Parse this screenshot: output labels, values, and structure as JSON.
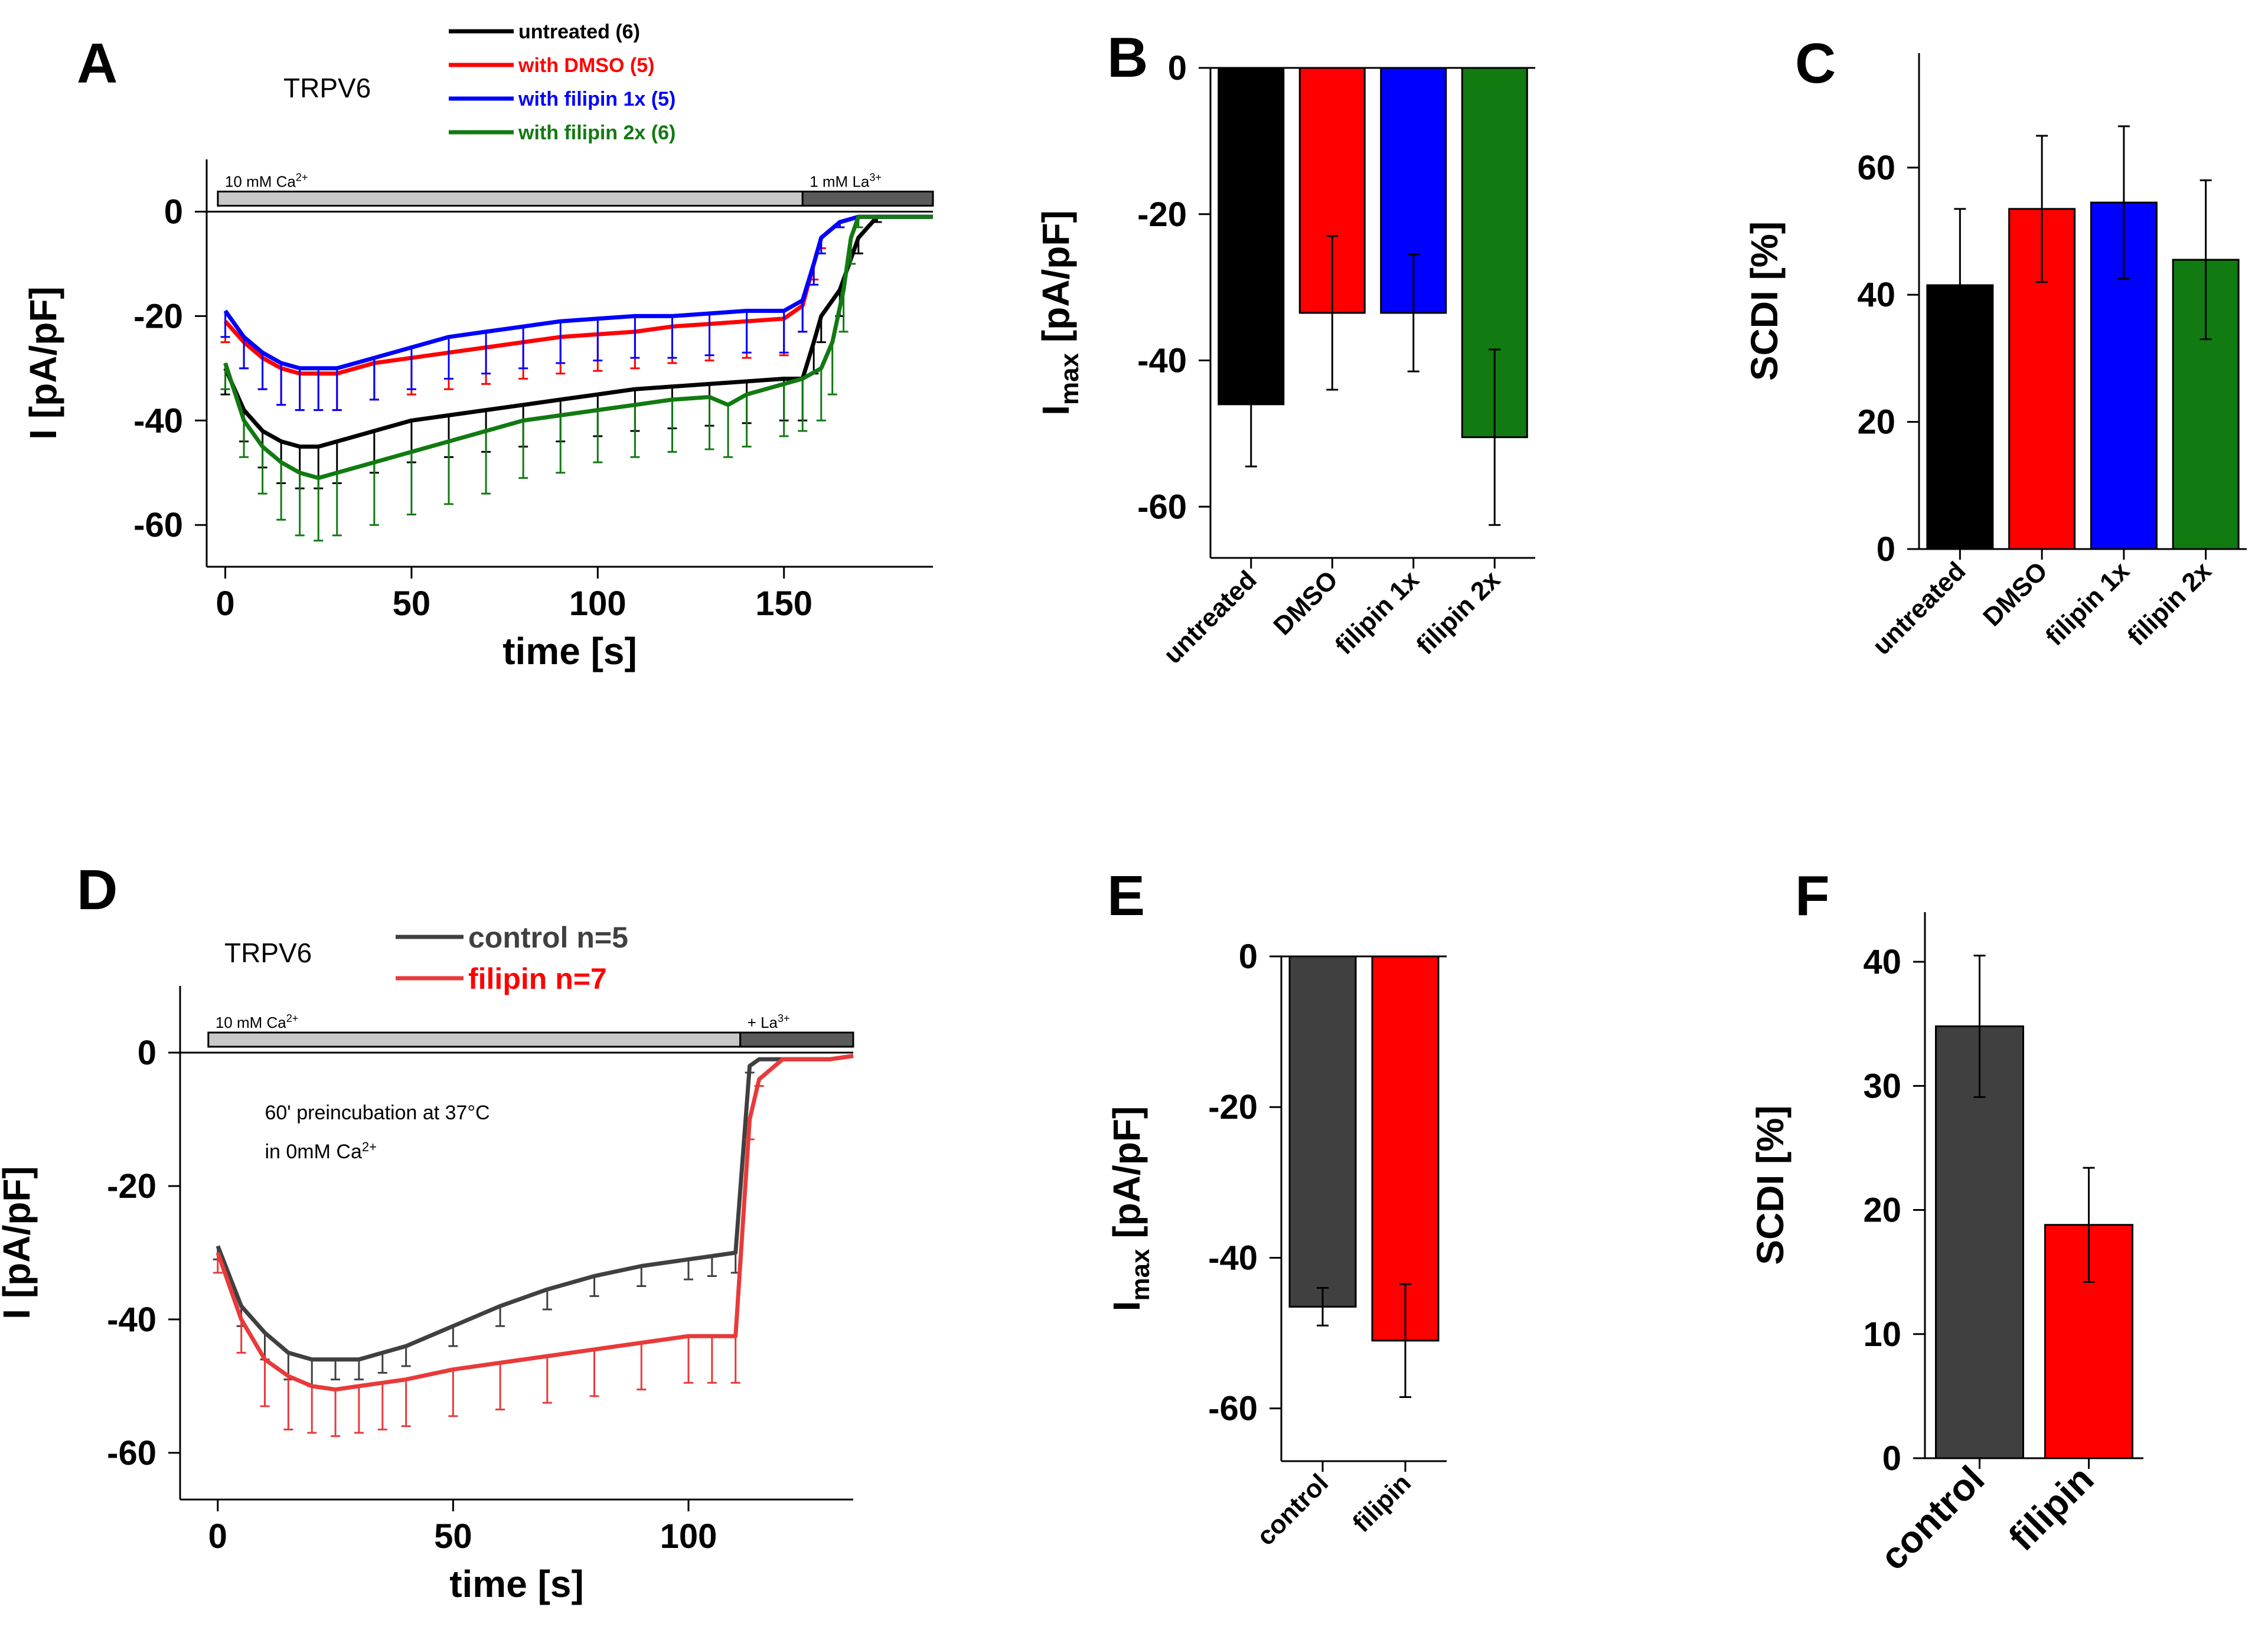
{
  "colors": {
    "untreated": "#000000",
    "dmso": "#ff0000",
    "filipin1x": "#0000ff",
    "filipin2x": "#117a11",
    "control": "#404040",
    "filipin": "#ff0000",
    "filipin_trace": "#e83a3a",
    "bar_light": "#c8c8c8",
    "bar_dark": "#5a5a5a"
  },
  "chart_data": [
    {
      "panel": "A",
      "type": "line",
      "title": "TRPV6",
      "xlabel": "time [s]",
      "ylabel": "I [pA/pF]",
      "xlim": [
        -5,
        190
      ],
      "ylim": [
        -68,
        10
      ],
      "xticks": [
        "0",
        "50",
        "100",
        "150"
      ],
      "xtick_values": [
        0,
        50,
        100,
        150
      ],
      "yticks": [
        "0",
        "-20",
        "-40",
        "-60"
      ],
      "ytick_values": [
        0,
        -20,
        -40,
        -60
      ],
      "application_bars": [
        {
          "label_main": "10 mM Ca",
          "label_sup": "2+",
          "start": -2,
          "end": 155
        },
        {
          "label_main": "1 mM La",
          "label_sup": "3+",
          "start": 155,
          "end": 190
        }
      ],
      "series": [
        {
          "name": "untreated (6)",
          "color_key": "untreated",
          "x": [
            0,
            5,
            10,
            15,
            20,
            25,
            30,
            40,
            50,
            60,
            70,
            80,
            90,
            100,
            110,
            120,
            130,
            140,
            150,
            155,
            158,
            160,
            165,
            170,
            175,
            180,
            190
          ],
          "y": [
            -30,
            -38,
            -42,
            -44,
            -45,
            -45,
            -44,
            -42,
            -40,
            -39,
            -38,
            -37,
            -36,
            -35,
            -34,
            -33.5,
            -33,
            -32.5,
            -32,
            -32,
            -25,
            -20,
            -15,
            -5,
            -1,
            -1,
            -1
          ],
          "err": [
            5,
            6,
            7,
            8,
            8,
            8,
            8,
            8,
            8,
            8,
            8,
            8,
            8,
            8,
            8,
            8,
            8,
            8,
            8,
            8,
            6,
            5,
            5,
            3,
            1,
            0,
            0
          ]
        },
        {
          "name": "with DMSO (5)",
          "color_key": "dmso",
          "x": [
            0,
            5,
            10,
            15,
            20,
            25,
            30,
            40,
            50,
            60,
            70,
            80,
            90,
            100,
            110,
            120,
            130,
            140,
            150,
            155,
            158,
            160,
            165,
            170,
            175,
            180,
            190
          ],
          "y": [
            -21,
            -25,
            -28,
            -30,
            -31,
            -31,
            -31,
            -29,
            -28,
            -27,
            -26,
            -25,
            -24,
            -23.5,
            -23,
            -22,
            -21.5,
            -21,
            -20.5,
            -18,
            -10,
            -5,
            -2,
            -1,
            -1,
            -1,
            -1
          ],
          "err": [
            4,
            5,
            6,
            7,
            7,
            7,
            7,
            7,
            7,
            7,
            7,
            7,
            7,
            7,
            7,
            7,
            7,
            7,
            7,
            5,
            3,
            2,
            1,
            0,
            0,
            0,
            0
          ]
        },
        {
          "name": "with filipin 1x (5)",
          "color_key": "filipin1x",
          "x": [
            0,
            5,
            10,
            15,
            20,
            25,
            30,
            40,
            50,
            60,
            70,
            80,
            90,
            100,
            110,
            120,
            130,
            140,
            150,
            155,
            158,
            160,
            165,
            170,
            175,
            180,
            190
          ],
          "y": [
            -19,
            -24,
            -27,
            -29,
            -30,
            -30,
            -30,
            -28,
            -26,
            -24,
            -23,
            -22,
            -21,
            -20.5,
            -20,
            -20,
            -19.5,
            -19,
            -19,
            -17,
            -10,
            -5,
            -2,
            -1,
            -1,
            -1,
            -1
          ],
          "err": [
            5,
            6,
            7,
            8,
            8,
            8,
            8,
            8,
            8,
            8,
            8,
            8,
            8,
            8,
            8,
            8,
            8,
            8,
            8,
            6,
            4,
            3,
            1,
            0,
            0,
            0,
            0
          ]
        },
        {
          "name": "with filipin 2x (6)",
          "color_key": "filipin2x",
          "x": [
            0,
            5,
            10,
            15,
            20,
            25,
            30,
            40,
            50,
            60,
            70,
            80,
            90,
            100,
            110,
            120,
            130,
            135,
            140,
            150,
            155,
            160,
            163,
            166,
            168,
            170,
            175,
            180,
            190
          ],
          "y": [
            -29,
            -40,
            -45,
            -48,
            -50,
            -51,
            -50,
            -48,
            -46,
            -44,
            -42,
            -40,
            -39,
            -38,
            -37,
            -36,
            -35.5,
            -37,
            -35,
            -33,
            -32,
            -30,
            -25,
            -15,
            -5,
            -1,
            -1,
            -1,
            -1
          ],
          "err": [
            5,
            7,
            9,
            11,
            12,
            12,
            12,
            12,
            12,
            12,
            12,
            11,
            11,
            10,
            10,
            10,
            10,
            10,
            10,
            10,
            10,
            10,
            10,
            8,
            5,
            2,
            0,
            0,
            0
          ]
        }
      ]
    },
    {
      "panel": "B",
      "type": "bar",
      "ylabel_main": "I",
      "ylabel_sub": "max",
      "ylabel_rest": " [pA/pF]",
      "categories": [
        "untreated",
        "DMSO",
        "filipin 1x",
        "filipin 2x"
      ],
      "color_keys": [
        "untreated",
        "dmso",
        "filipin1x",
        "filipin2x"
      ],
      "values": [
        -46,
        -33.5,
        -33.5,
        -50.5
      ],
      "errors": [
        8.5,
        10.5,
        8,
        12
      ],
      "ylim": [
        -67,
        0
      ],
      "yticks": [
        "0",
        "-20",
        "-40",
        "-60"
      ],
      "ytick_values": [
        0,
        -20,
        -40,
        -60
      ]
    },
    {
      "panel": "C",
      "type": "bar",
      "ylabel": "SCDI [%]",
      "categories": [
        "untreated",
        "DMSO",
        "filipin 1x",
        "filipin 2x"
      ],
      "color_keys": [
        "untreated",
        "dmso",
        "filipin1x",
        "filipin2x"
      ],
      "values": [
        41.5,
        53.5,
        54.5,
        45.5
      ],
      "errors": [
        12,
        11.5,
        12,
        12.5
      ],
      "ylim": [
        0,
        78
      ],
      "yticks": [
        "0",
        "20",
        "40",
        "60"
      ],
      "ytick_values": [
        0,
        20,
        40,
        60
      ]
    },
    {
      "panel": "D",
      "type": "line",
      "title": "TRPV6",
      "xlabel": "time [s]",
      "ylabel": "I [pA/pF]",
      "xlim": [
        -8,
        135
      ],
      "ylim": [
        -67,
        10
      ],
      "xticks": [
        "0",
        "50",
        "100"
      ],
      "xtick_values": [
        0,
        50,
        100
      ],
      "yticks": [
        "0",
        "-20",
        "-40",
        "-60"
      ],
      "ytick_values": [
        0,
        -20,
        -40,
        -60
      ],
      "annotation_line1": "60' preincubation at 37°C",
      "annotation_line2_main": "in 0mM Ca",
      "annotation_line2_sup": "2+",
      "application_bars": [
        {
          "label_main": "10 mM Ca",
          "label_sup": "2+",
          "start": -2,
          "end": 111
        },
        {
          "label_main": "+ La",
          "label_sup": "3+",
          "start": 111,
          "end": 135
        }
      ],
      "series": [
        {
          "name": "control n=5",
          "color_key": "control",
          "x": [
            0,
            5,
            10,
            15,
            20,
            25,
            30,
            35,
            40,
            50,
            60,
            70,
            80,
            90,
            100,
            105,
            110,
            113,
            115,
            120,
            125,
            130,
            135
          ],
          "y": [
            -29,
            -38,
            -42,
            -45,
            -46,
            -46,
            -46,
            -45,
            -44,
            -41,
            -38,
            -35.5,
            -33.5,
            -32,
            -31,
            -30.5,
            -30,
            -2,
            -1,
            -1,
            -1,
            -1,
            -0.5
          ],
          "err": [
            2,
            3,
            4,
            4,
            4,
            3,
            3,
            3,
            3,
            3,
            3,
            3,
            3,
            3,
            3,
            3,
            3,
            1,
            0,
            0,
            0,
            0,
            0
          ]
        },
        {
          "name": "filipin n=7",
          "color_key": "filipin_trace",
          "x": [
            0,
            5,
            10,
            15,
            20,
            25,
            30,
            35,
            40,
            50,
            60,
            70,
            80,
            90,
            100,
            105,
            110,
            113,
            115,
            120,
            125,
            130,
            135
          ],
          "y": [
            -30,
            -40,
            -46,
            -48.5,
            -50,
            -50.5,
            -50,
            -49.5,
            -49,
            -47.5,
            -46.5,
            -45.5,
            -44.5,
            -43.5,
            -42.5,
            -42.5,
            -42.5,
            -10,
            -4,
            -1,
            -1,
            -1,
            -0.5
          ],
          "err": [
            3,
            5,
            7,
            8,
            7,
            7,
            7,
            7,
            7,
            7,
            7,
            7,
            7,
            7,
            7,
            7,
            7,
            3,
            1,
            0,
            0,
            0,
            0
          ]
        }
      ]
    },
    {
      "panel": "E",
      "type": "bar",
      "ylabel_main": "I",
      "ylabel_sub": "max",
      "ylabel_rest": " [pA/pF]",
      "categories": [
        "control",
        "filipin"
      ],
      "color_keys": [
        "control",
        "filipin"
      ],
      "values": [
        -46.5,
        -51
      ],
      "errors": [
        2.5,
        7.5
      ],
      "ylim": [
        -67,
        0
      ],
      "yticks": [
        "0",
        "-20",
        "-40",
        "-60"
      ],
      "ytick_values": [
        0,
        -20,
        -40,
        -60
      ]
    },
    {
      "panel": "F",
      "type": "bar",
      "ylabel": "SCDI [%]",
      "categories": [
        "control",
        "filipin"
      ],
      "color_keys": [
        "control",
        "filipin"
      ],
      "values": [
        34.8,
        18.8
      ],
      "errors": [
        5.7,
        4.6
      ],
      "ylim": [
        0,
        44
      ],
      "yticks": [
        "0",
        "10",
        "20",
        "30",
        "40"
      ],
      "ytick_values": [
        0,
        10,
        20,
        30,
        40
      ]
    }
  ]
}
